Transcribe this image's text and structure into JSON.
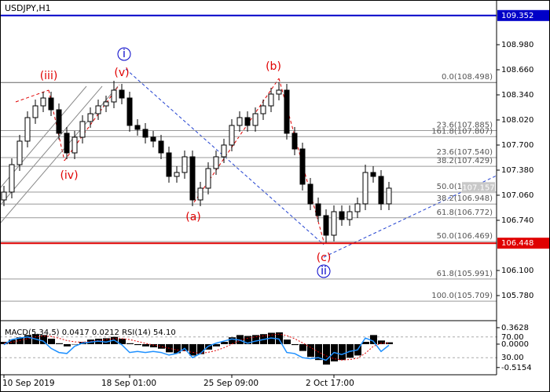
{
  "chart_data": {
    "type": "candlestick",
    "title": "USDJPY,H1",
    "categories": [
      "10 Sep 2019",
      null,
      null,
      null,
      null,
      null,
      null,
      null,
      null,
      null,
      null,
      null,
      null,
      null,
      null,
      null,
      "18 Sep 01:00",
      null,
      null,
      null,
      null,
      null,
      null,
      null,
      null,
      null,
      null,
      null,
      null,
      "25 Sep 09:00",
      null,
      null,
      null,
      null,
      null,
      null,
      null,
      null,
      null,
      null,
      null,
      null,
      "2 Oct 17:00",
      null,
      null,
      null,
      null,
      null,
      null,
      null
    ],
    "opens": [
      107.0,
      107.1,
      107.45,
      107.75,
      108.05,
      108.2,
      108.3,
      108.15,
      107.85,
      107.6,
      107.8,
      108.0,
      108.1,
      108.2,
      108.25,
      108.4,
      108.3,
      107.95,
      107.9,
      107.8,
      107.75,
      107.6,
      107.3,
      107.35,
      107.55,
      107.0,
      107.15,
      107.4,
      107.55,
      107.7,
      107.95,
      108.05,
      107.95,
      108.1,
      108.2,
      108.35,
      108.4,
      107.85,
      107.65,
      107.2,
      106.95,
      106.8,
      106.55,
      106.85,
      106.75,
      106.85,
      106.95,
      107.35,
      107.3,
      106.95
    ],
    "highs": [
      107.18,
      107.53,
      107.83,
      108.13,
      108.28,
      108.38,
      108.38,
      108.23,
      107.93,
      107.88,
      108.08,
      108.18,
      108.28,
      108.33,
      108.52,
      108.48,
      108.38,
      108.03,
      107.98,
      107.88,
      107.83,
      107.68,
      107.43,
      107.63,
      107.63,
      107.23,
      107.48,
      107.63,
      107.78,
      108.03,
      108.13,
      108.13,
      108.18,
      108.28,
      108.43,
      108.5,
      108.48,
      107.93,
      107.73,
      107.28,
      107.03,
      106.88,
      106.93,
      106.93,
      106.93,
      107.03,
      107.45,
      107.43,
      107.38,
      107.23
    ],
    "lows": [
      106.92,
      107.02,
      107.37,
      107.67,
      107.97,
      108.12,
      108.07,
      107.77,
      107.52,
      107.52,
      107.72,
      107.92,
      108.02,
      108.12,
      108.17,
      108.22,
      107.87,
      107.82,
      107.72,
      107.67,
      107.52,
      107.22,
      107.22,
      107.27,
      106.92,
      106.92,
      107.07,
      107.32,
      107.47,
      107.62,
      107.87,
      107.87,
      107.87,
      108.02,
      108.12,
      108.27,
      107.77,
      107.57,
      107.12,
      106.87,
      106.72,
      106.45,
      106.47,
      106.67,
      106.67,
      106.77,
      106.87,
      107.22,
      106.87,
      106.87
    ],
    "closes": [
      107.1,
      107.45,
      107.75,
      108.05,
      108.2,
      108.3,
      108.15,
      107.85,
      107.6,
      107.8,
      108.0,
      108.1,
      108.2,
      108.25,
      108.4,
      108.3,
      107.95,
      107.9,
      107.8,
      107.75,
      107.6,
      107.3,
      107.35,
      107.55,
      107.0,
      107.15,
      107.4,
      107.55,
      107.7,
      107.95,
      108.05,
      107.95,
      108.1,
      108.2,
      108.35,
      108.4,
      107.85,
      107.65,
      107.2,
      106.95,
      106.8,
      106.55,
      106.85,
      106.75,
      106.85,
      106.95,
      107.35,
      107.3,
      106.95,
      107.15
    ],
    "ylim": [
      105.47,
      109.55
    ],
    "yticks": [
      {
        "value": 108.98,
        "label": "108.980"
      },
      {
        "value": 108.66,
        "label": "108.660"
      },
      {
        "value": 108.34,
        "label": "108.340"
      },
      {
        "value": 108.02,
        "label": "108.020"
      },
      {
        "value": 107.7,
        "label": "107.700"
      },
      {
        "value": 107.38,
        "label": "107.380"
      },
      {
        "value": 107.06,
        "label": "107.060"
      },
      {
        "value": 106.74,
        "label": "106.740"
      },
      {
        "value": 106.1,
        "label": "106.100"
      },
      {
        "value": 105.78,
        "label": "105.780"
      }
    ],
    "price_lines": [
      {
        "value": 109.352,
        "color": "#0000c8"
      },
      {
        "value": 106.448,
        "color": "#e00000"
      }
    ],
    "current_price": 107.157,
    "fib_levels": [
      {
        "value": 108.498,
        "label": "0.0(108.498)"
      },
      {
        "value": 107.885,
        "label": "23.6(107.885)"
      },
      {
        "value": 107.807,
        "label": "161.8(107.807)"
      },
      {
        "value": 107.54,
        "label": "23.6(107.540)"
      },
      {
        "value": 107.429,
        "label": "38.2(107.429)"
      },
      {
        "value": 107.1,
        "label": "50.0(107.100)"
      },
      {
        "value": 106.948,
        "label": "38.2(106.948)"
      },
      {
        "value": 106.772,
        "label": "61.8(106.772)"
      },
      {
        "value": 106.469,
        "label": "50.0(106.469)"
      },
      {
        "value": 105.991,
        "label": "61.8(105.991)"
      },
      {
        "value": 105.709,
        "label": "100.0(105.709)"
      }
    ],
    "annotations": [
      "(iii)",
      "(v)",
      "(iv)",
      "i",
      "(a)",
      "(b)",
      "(c)",
      "ii"
    ],
    "indicator": {
      "title": "MACD(5,34,5) 0.0417 0.0212 RSI(14) 54.10",
      "ylim": [
        -0.64,
        0.5
      ],
      "yticks": [
        0.3628,
        {
          "value": 0,
          "label": "0.0000"
        },
        -0.5154
      ],
      "rsi_ylim": [
        0,
        100
      ],
      "rsi_ticks": [
        {
          "value": 70,
          "label": "70.00"
        },
        {
          "value": 30,
          "label": "30.00"
        }
      ],
      "macd": [
        0.05,
        0.1,
        0.15,
        0.2,
        0.22,
        0.2,
        0.12,
        0.02,
        -0.05,
        0.0,
        0.05,
        0.1,
        0.12,
        0.13,
        0.16,
        0.12,
        0.02,
        -0.02,
        -0.05,
        -0.07,
        -0.1,
        -0.18,
        -0.2,
        -0.15,
        -0.25,
        -0.22,
        -0.12,
        -0.05,
        0.05,
        0.15,
        0.2,
        0.18,
        0.2,
        0.22,
        0.25,
        0.26,
        0.1,
        -0.02,
        -0.15,
        -0.28,
        -0.35,
        -0.45,
        -0.38,
        -0.35,
        -0.3,
        -0.25,
        0.05,
        0.2,
        0.08,
        0.04
      ],
      "signal": [
        0.02,
        0.04,
        0.08,
        0.12,
        0.16,
        0.18,
        0.17,
        0.13,
        0.08,
        0.05,
        0.04,
        0.06,
        0.08,
        0.1,
        0.12,
        0.12,
        0.1,
        0.06,
        0.02,
        -0.02,
        -0.05,
        -0.09,
        -0.13,
        -0.15,
        -0.18,
        -0.2,
        -0.18,
        -0.14,
        -0.08,
        0.0,
        0.08,
        0.13,
        0.16,
        0.18,
        0.2,
        0.22,
        0.19,
        0.12,
        0.03,
        -0.07,
        -0.17,
        -0.26,
        -0.32,
        -0.35,
        -0.34,
        -0.31,
        -0.2,
        -0.05,
        0.02,
        0.02
      ],
      "rsi": [
        55,
        65,
        68,
        70,
        66,
        62,
        48,
        40,
        38,
        52,
        58,
        60,
        62,
        60,
        64,
        55,
        40,
        42,
        40,
        42,
        40,
        35,
        38,
        48,
        30,
        38,
        52,
        58,
        62,
        66,
        64,
        58,
        62,
        65,
        68,
        66,
        40,
        38,
        30,
        28,
        30,
        25,
        40,
        36,
        42,
        45,
        68,
        62,
        42,
        54
      ]
    }
  }
}
